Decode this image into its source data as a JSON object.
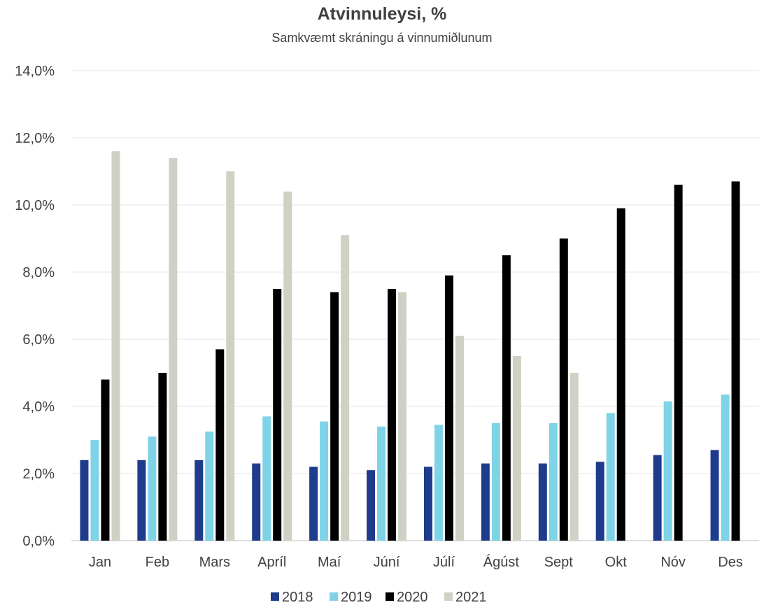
{
  "chart_data": {
    "type": "bar",
    "title": "Atvinnuleysi, %",
    "subtitle": "Samkvæmt skráningu á vinnumiðlunum",
    "categories": [
      "Jan",
      "Feb",
      "Mars",
      "Apríl",
      "Maí",
      "Júní",
      "Júlí",
      "Ágúst",
      "Sept",
      "Okt",
      "Nóv",
      "Des"
    ],
    "series": [
      {
        "name": "2018",
        "color": "#1f3b8c",
        "values": [
          2.4,
          2.4,
          2.4,
          2.3,
          2.2,
          2.1,
          2.2,
          2.3,
          2.3,
          2.35,
          2.55,
          2.7
        ]
      },
      {
        "name": "2019",
        "color": "#7fd3e6",
        "values": [
          3.0,
          3.1,
          3.25,
          3.7,
          3.55,
          3.4,
          3.45,
          3.5,
          3.5,
          3.8,
          4.15,
          4.35
        ]
      },
      {
        "name": "2020",
        "color": "#000000",
        "values": [
          4.8,
          5.0,
          5.7,
          7.5,
          7.4,
          7.5,
          7.9,
          8.5,
          9.0,
          9.9,
          10.6,
          10.7
        ]
      },
      {
        "name": "2021",
        "color": "#cfd1c4",
        "values": [
          11.6,
          11.4,
          11.0,
          10.4,
          9.1,
          7.4,
          6.1,
          5.5,
          5.0,
          null,
          null,
          null
        ]
      }
    ],
    "ylim": [
      0,
      14
    ],
    "yticks": [
      "0,0%",
      "2,0%",
      "4,0%",
      "6,0%",
      "8,0%",
      "10,0%",
      "12,0%",
      "14,0%"
    ],
    "grid": true,
    "legend_position": "bottom"
  }
}
